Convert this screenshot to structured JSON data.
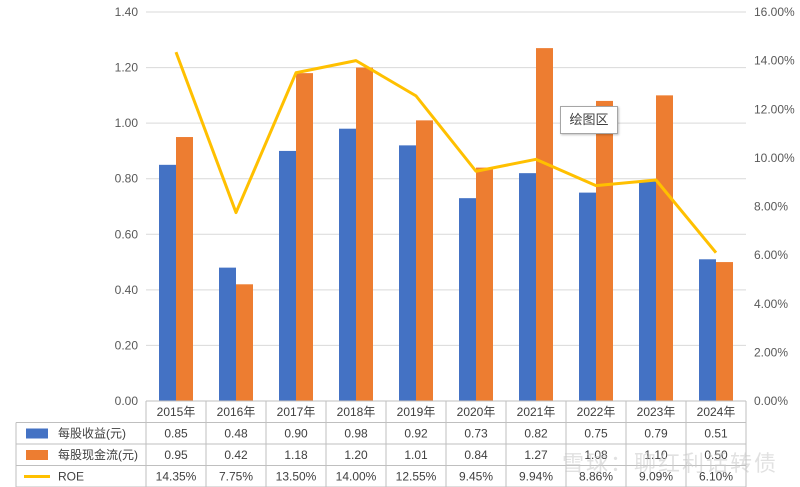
{
  "chart_data": {
    "type": "bar",
    "categories": [
      "2015年",
      "2016年",
      "2017年",
      "2018年",
      "2019年",
      "2020年",
      "2021年",
      "2022年",
      "2023年",
      "2024年"
    ],
    "series": [
      {
        "name": "每股收益(元)",
        "kind": "bar",
        "axis": "left",
        "color": "#4472C4",
        "values": [
          0.85,
          0.48,
          0.9,
          0.98,
          0.92,
          0.73,
          0.82,
          0.75,
          0.79,
          0.51
        ],
        "labels": [
          "0.85",
          "0.48",
          "0.90",
          "0.98",
          "0.92",
          "0.73",
          "0.82",
          "0.75",
          "0.79",
          "0.51"
        ]
      },
      {
        "name": "每股现金流(元)",
        "kind": "bar",
        "axis": "left",
        "color": "#ED7D31",
        "values": [
          0.95,
          0.42,
          1.18,
          1.2,
          1.01,
          0.84,
          1.27,
          1.08,
          1.1,
          0.5
        ],
        "labels": [
          "0.95",
          "0.42",
          "1.18",
          "1.20",
          "1.01",
          "0.84",
          "1.27",
          "1.08",
          "1.10",
          "0.50"
        ]
      },
      {
        "name": "ROE",
        "kind": "line",
        "axis": "right",
        "color": "#FFC000",
        "values": [
          14.35,
          7.75,
          13.5,
          14.0,
          12.55,
          9.45,
          9.94,
          8.86,
          9.09,
          6.1
        ],
        "labels": [
          "14.35%",
          "7.75%",
          "13.50%",
          "14.00%",
          "12.55%",
          "9.45%",
          "9.94%",
          "8.86%",
          "9.09%",
          "6.10%"
        ]
      }
    ],
    "ylim": [
      0,
      1.4
    ],
    "y_ticks": [
      "0.00",
      "0.20",
      "0.40",
      "0.60",
      "0.80",
      "1.00",
      "1.20",
      "1.40"
    ],
    "y2lim": [
      0,
      16
    ],
    "y2_ticks": [
      "0.00%",
      "2.00%",
      "4.00%",
      "6.00%",
      "8.00%",
      "10.00%",
      "12.00%",
      "14.00%",
      "16.00%"
    ],
    "grid": true,
    "legend": "data-table"
  },
  "tooltip": {
    "text": "绘图区"
  },
  "watermark": {
    "text": "雪球：聊红利话转债"
  }
}
